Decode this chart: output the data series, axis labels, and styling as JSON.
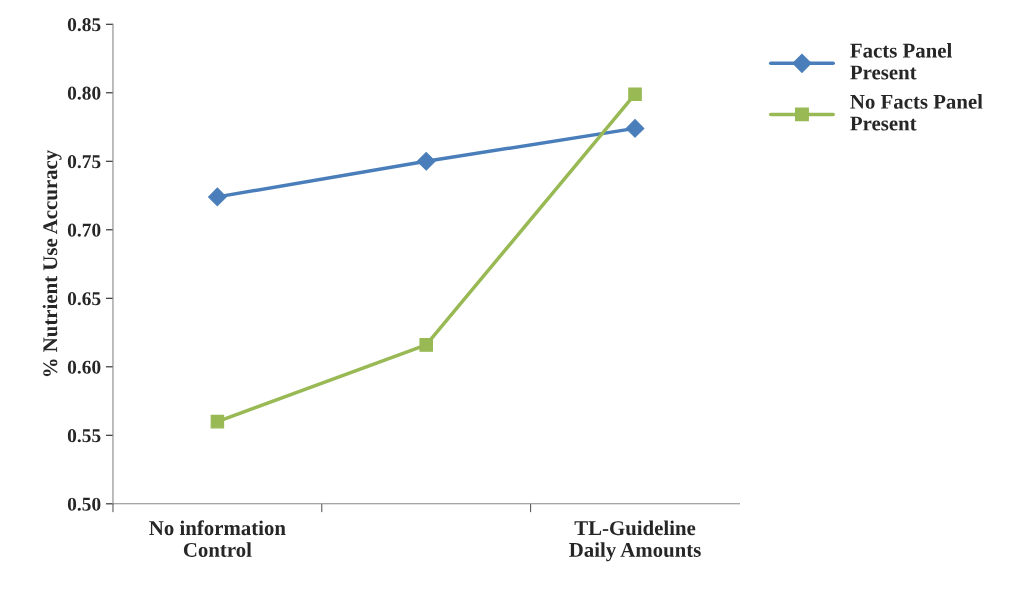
{
  "chart_data": {
    "type": "line",
    "ylabel": "% Nutrient Use Accuracy",
    "categories": [
      "No information\nControl",
      null,
      "TL-Guideline\nDaily Amounts"
    ],
    "series": [
      {
        "name": "Facts Panel\nPresent",
        "color": "#4a7ebb",
        "marker": "diamond",
        "values": [
          0.724,
          0.75,
          0.774
        ]
      },
      {
        "name": "No Facts Panel\nPresent",
        "color": "#98b954",
        "marker": "square",
        "values": [
          0.56,
          0.616,
          0.799
        ]
      }
    ],
    "ylim": [
      0.5,
      0.85
    ],
    "yticks": [
      {
        "value": 0.5,
        "label": "0.50"
      },
      {
        "value": 0.55,
        "label": "0.55"
      },
      {
        "value": 0.6,
        "label": "0.60"
      },
      {
        "value": 0.65,
        "label": "0.65"
      },
      {
        "value": 0.7,
        "label": "0.70"
      },
      {
        "value": 0.75,
        "label": "0.75"
      },
      {
        "value": 0.8,
        "label": "0.80"
      },
      {
        "value": 0.85,
        "label": "0.85"
      }
    ],
    "grid": false,
    "legend": "top right",
    "line_style": "solid"
  }
}
